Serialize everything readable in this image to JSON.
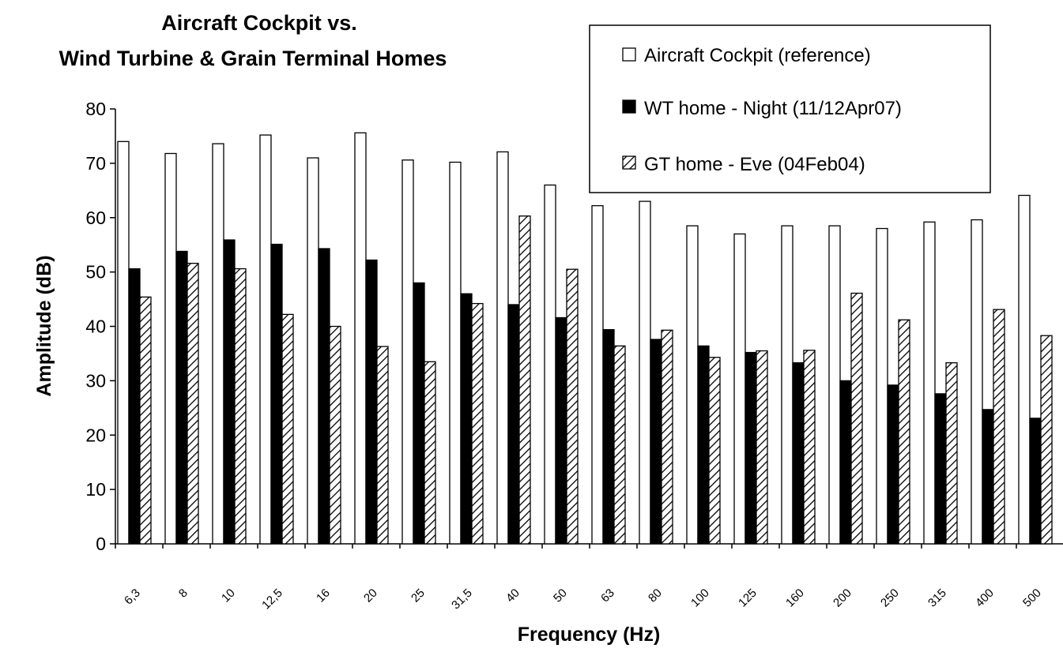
{
  "chart_data": {
    "type": "bar",
    "title_lines": [
      "Aircraft Cockpit vs.",
      "Wind Turbine & Grain Terminal Homes"
    ],
    "xlabel": "Frequency (Hz)",
    "ylabel": "Amplitude (dB)",
    "ylim": [
      0,
      80
    ],
    "yticks": [
      "0",
      "10",
      "20",
      "30",
      "40",
      "50",
      "60",
      "70",
      "80"
    ],
    "categories": [
      "6,3",
      "8",
      "10",
      "12,5",
      "16",
      "20",
      "25",
      "31,5",
      "40",
      "50",
      "63",
      "80",
      "100",
      "125",
      "160",
      "200",
      "250",
      "315",
      "400",
      "500"
    ],
    "series": [
      {
        "name": "Aircraft Cockpit (reference)",
        "fill": "#ffffff",
        "pattern": "none",
        "values": [
          74,
          71.8,
          73.6,
          75.2,
          71,
          75.6,
          70.6,
          70.2,
          72.1,
          66,
          62.2,
          63,
          58.5,
          57,
          58.5,
          58.5,
          58,
          59.2,
          59.6,
          64.1
        ]
      },
      {
        "name": "WT home - Night (11/12Apr07)",
        "fill": "#000000",
        "pattern": "none",
        "values": [
          50.6,
          53.8,
          55.9,
          55.1,
          54.3,
          52.2,
          48,
          46,
          44,
          41.6,
          39.4,
          37.6,
          36.4,
          35.2,
          33.3,
          30,
          29.2,
          27.6,
          24.7,
          23.1
        ]
      },
      {
        "name": "GT home - Eve (04Feb04)",
        "fill": "#ffffff",
        "pattern": "hatch",
        "values": [
          45.4,
          51.6,
          50.6,
          42.2,
          40,
          36.3,
          33.5,
          44.2,
          60.3,
          50.5,
          36.4,
          39.3,
          34.3,
          35.5,
          35.6,
          46.1,
          41.2,
          33.3,
          43.1,
          38.3
        ]
      }
    ],
    "legend_position": "top-right",
    "grid": false
  }
}
